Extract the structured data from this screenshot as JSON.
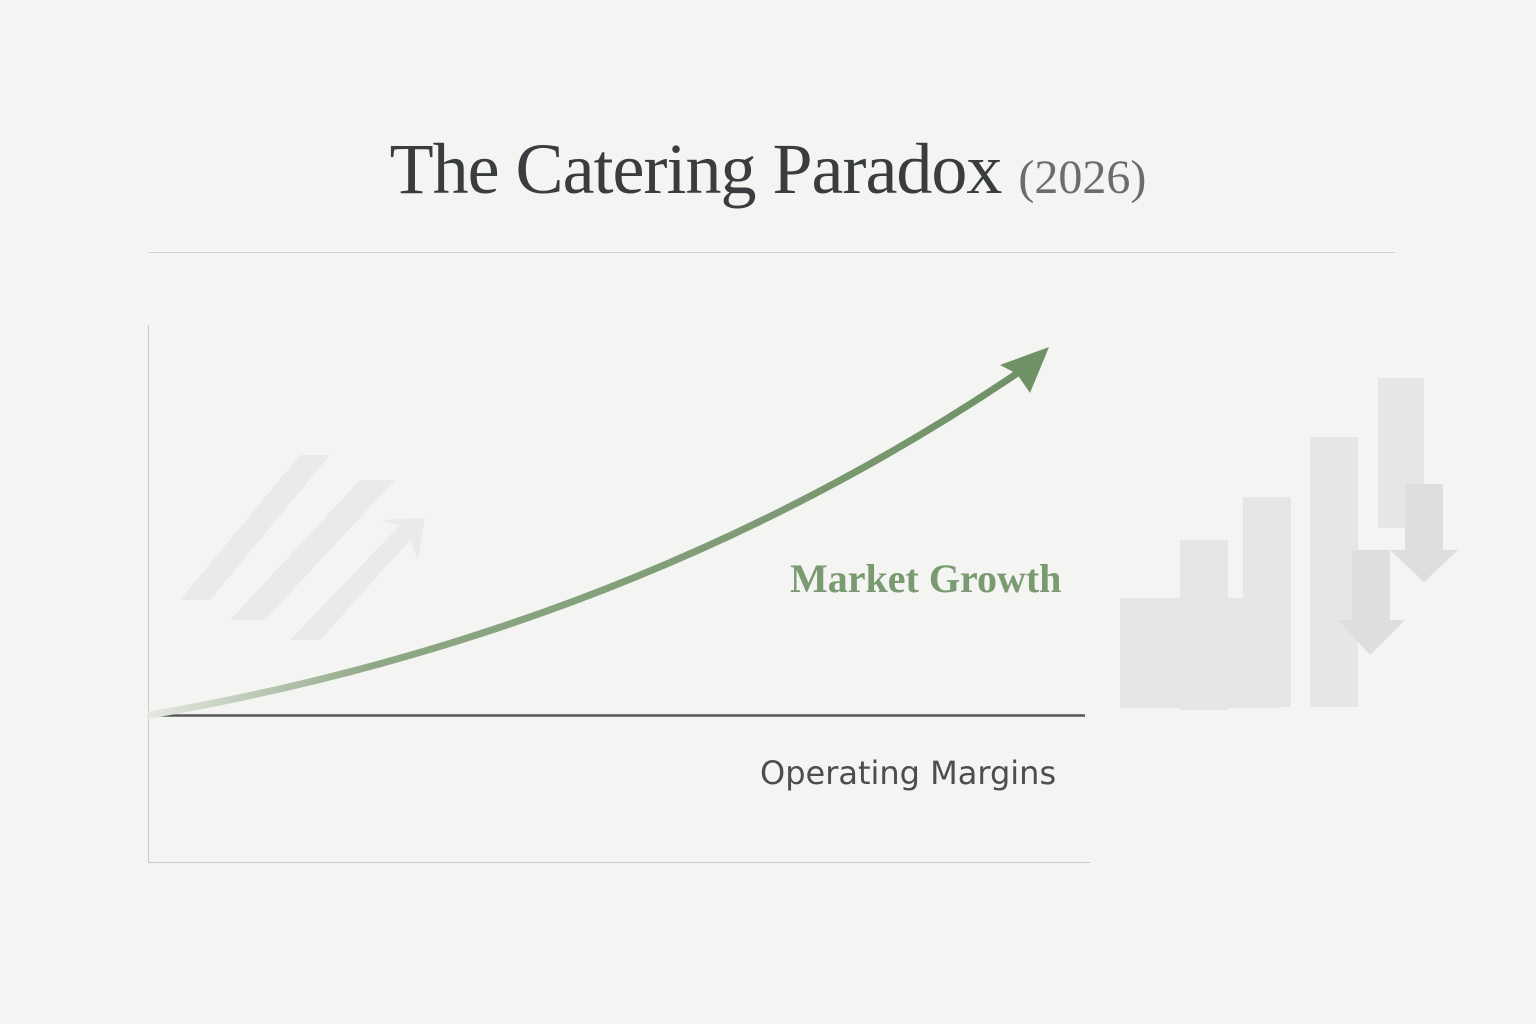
{
  "title": {
    "main": "The Catering Paradox",
    "year": "(2026)"
  },
  "labels": {
    "growth": "Market Growth",
    "margins": "Operating Margins"
  },
  "colors": {
    "growth": "#7a9a72",
    "margins": "#4b4d50",
    "background": "#f4f4f2"
  },
  "decor": {
    "left": "faded-up-arrows-icon",
    "right": "faded-bars-down-arrows-icon"
  }
}
